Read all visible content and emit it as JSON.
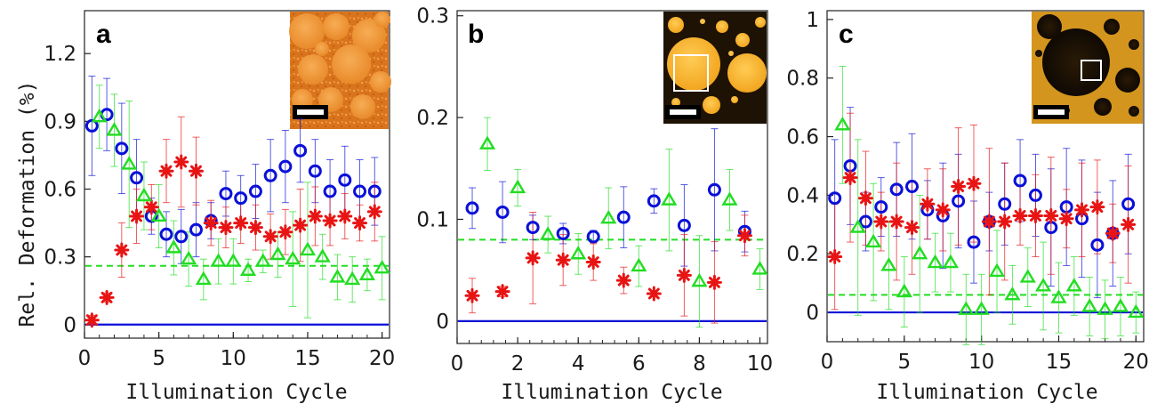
{
  "figure": {
    "ylabel": "Rel. Deformation (%)",
    "colors": {
      "blue": "#0a10d8",
      "red": "#e81414",
      "green": "#22dd22",
      "axis": "#222222"
    }
  },
  "chart_data": [
    {
      "type": "scatter",
      "panel_label": "a",
      "title": "",
      "xlabel": "Illumination Cycle",
      "ylabel": "Rel. Deformation (%)",
      "xlim": [
        0,
        20.5
      ],
      "ylim": [
        -0.06,
        1.39
      ],
      "xticks": [
        0,
        5,
        10,
        15,
        20
      ],
      "xtick_labels": [
        "0",
        "5",
        "10",
        "15",
        "20"
      ],
      "yticks": [
        0,
        0.3,
        0.6,
        0.9,
        1.2
      ],
      "ytick_labels": [
        "0",
        "0.3",
        "0.6",
        "0.9",
        "1.2"
      ],
      "grid": false,
      "reference_lines": [
        {
          "y": 0,
          "style": "solid",
          "color": "blue"
        },
        {
          "y": 0.26,
          "style": "dashed",
          "color": "green"
        }
      ],
      "series": [
        {
          "marker": "circle",
          "color": "blue",
          "x": [
            0.5,
            1.5,
            2.5,
            3.5,
            4.5,
            5.5,
            6.5,
            7.5,
            8.5,
            9.5,
            10.5,
            11.5,
            12.5,
            13.5,
            14.5,
            15.5,
            16.5,
            17.5,
            18.5,
            19.5
          ],
          "y": [
            0.88,
            0.93,
            0.78,
            0.65,
            0.48,
            0.4,
            0.39,
            0.42,
            0.46,
            0.58,
            0.56,
            0.59,
            0.66,
            0.7,
            0.77,
            0.68,
            0.59,
            0.64,
            0.59,
            0.59
          ],
          "err": [
            0.22,
            0.16,
            0.2,
            0.17,
            0.08,
            0.1,
            0.12,
            0.12,
            0.08,
            0.1,
            0.1,
            0.12,
            0.16,
            0.16,
            0.14,
            0.14,
            0.14,
            0.15,
            0.14,
            0.15
          ]
        },
        {
          "marker": "asterisk",
          "color": "red",
          "x": [
            0.5,
            1.5,
            2.5,
            3.5,
            4.5,
            5.5,
            6.5,
            7.5,
            8.5,
            9.5,
            10.5,
            11.5,
            12.5,
            13.5,
            14.5,
            15.5,
            16.5,
            17.5,
            18.5,
            19.5
          ],
          "y": [
            0.02,
            0.12,
            0.33,
            0.48,
            0.52,
            0.68,
            0.72,
            0.68,
            0.45,
            0.43,
            0.45,
            0.43,
            0.39,
            0.41,
            0.44,
            0.48,
            0.46,
            0.48,
            0.45,
            0.5
          ],
          "err": [
            0.02,
            0.02,
            0.12,
            0.12,
            0.1,
            0.14,
            0.2,
            0.15,
            0.1,
            0.09,
            0.09,
            0.1,
            0.1,
            0.1,
            0.16,
            0.13,
            0.11,
            0.1,
            0.08,
            0.13
          ]
        },
        {
          "marker": "triangle",
          "color": "green",
          "x": [
            1,
            2,
            3,
            4,
            5,
            6,
            7,
            8,
            9,
            10,
            11,
            12,
            13,
            14,
            15,
            16,
            17,
            18,
            19,
            20
          ],
          "y": [
            0.92,
            0.86,
            0.71,
            0.57,
            0.48,
            0.34,
            0.29,
            0.2,
            0.28,
            0.28,
            0.24,
            0.28,
            0.31,
            0.29,
            0.33,
            0.3,
            0.21,
            0.2,
            0.22,
            0.25
          ],
          "err": [
            0.14,
            0.16,
            0.28,
            0.15,
            0.14,
            0.12,
            0.12,
            0.09,
            0.1,
            0.1,
            0.05,
            0.05,
            0.1,
            0.21,
            0.3,
            0.1,
            0.1,
            0.1,
            0.07,
            0.14
          ]
        }
      ]
    },
    {
      "type": "scatter",
      "panel_label": "b",
      "title": "",
      "xlabel": "Illumination Cycle",
      "ylabel": "",
      "xlim": [
        0,
        10.25
      ],
      "ylim": [
        -0.022,
        0.305
      ],
      "xticks": [
        0,
        2,
        4,
        6,
        8,
        10
      ],
      "xtick_labels": [
        "0",
        "2",
        "4",
        "6",
        "8",
        "10"
      ],
      "yticks": [
        0,
        0.1,
        0.2,
        0.3
      ],
      "ytick_labels": [
        "0",
        "0.1",
        "0.2",
        "0.3"
      ],
      "grid": false,
      "reference_lines": [
        {
          "y": 0,
          "style": "solid",
          "color": "blue"
        },
        {
          "y": 0.08,
          "style": "dashed",
          "color": "green"
        }
      ],
      "series": [
        {
          "marker": "circle",
          "color": "blue",
          "x": [
            0.5,
            1.5,
            2.5,
            3.5,
            4.5,
            5.5,
            6.5,
            7.5,
            8.5,
            9.5
          ],
          "y": [
            0.111,
            0.107,
            0.092,
            0.086,
            0.083,
            0.102,
            0.118,
            0.094,
            0.129,
            0.088
          ],
          "err": [
            0.02,
            0.03,
            0.012,
            0.01,
            0.006,
            0.03,
            0.012,
            0.04,
            0.06,
            0.02
          ]
        },
        {
          "marker": "asterisk",
          "color": "red",
          "x": [
            0.5,
            1.5,
            2.5,
            3.5,
            4.5,
            5.5,
            6.5,
            7.5,
            8.5,
            9.5
          ],
          "y": [
            0.025,
            0.029,
            0.062,
            0.06,
            0.058,
            0.04,
            0.027,
            0.045,
            0.038,
            0.084
          ],
          "err": [
            0.017,
            0.005,
            0.045,
            0.025,
            0.018,
            0.013,
            0.003,
            0.04,
            0.04,
            0.02
          ]
        },
        {
          "marker": "triangle",
          "color": "green",
          "x": [
            1,
            2,
            3,
            4,
            5,
            6,
            7,
            8,
            9,
            10
          ],
          "y": [
            0.174,
            0.131,
            0.085,
            0.066,
            0.101,
            0.054,
            0.119,
            0.039,
            0.119,
            0.051
          ],
          "err": [
            0.026,
            0.018,
            0.018,
            0.02,
            0.03,
            0.02,
            0.05,
            0.045,
            0.03,
            0.02
          ]
        }
      ]
    },
    {
      "type": "scatter",
      "panel_label": "c",
      "title": "",
      "xlabel": "Illumination Cycle",
      "ylabel": "",
      "xlim": [
        0,
        20.5
      ],
      "ylim": [
        -0.1,
        1.03
      ],
      "xticks": [
        0,
        5,
        10,
        15,
        20
      ],
      "xtick_labels": [
        "0",
        "5",
        "10",
        "15",
        "20"
      ],
      "yticks": [
        0,
        0.2,
        0.4,
        0.6,
        0.8,
        1
      ],
      "ytick_labels": [
        "0",
        "0.2",
        "0.4",
        "0.6",
        "0.8",
        "1"
      ],
      "grid": false,
      "reference_lines": [
        {
          "y": 0,
          "style": "solid",
          "color": "blue"
        },
        {
          "y": 0.06,
          "style": "dashed",
          "color": "green"
        }
      ],
      "series": [
        {
          "marker": "circle",
          "color": "blue",
          "x": [
            0.5,
            1.5,
            2.5,
            3.5,
            4.5,
            5.5,
            6.5,
            7.5,
            8.5,
            9.5,
            10.5,
            11.5,
            12.5,
            13.5,
            14.5,
            15.5,
            16.5,
            17.5,
            18.5,
            19.5
          ],
          "y": [
            0.39,
            0.5,
            0.31,
            0.36,
            0.42,
            0.43,
            0.35,
            0.33,
            0.38,
            0.24,
            0.31,
            0.37,
            0.45,
            0.4,
            0.29,
            0.36,
            0.32,
            0.23,
            0.27,
            0.37
          ],
          "err": [
            0.2,
            0.2,
            0.1,
            0.1,
            0.16,
            0.18,
            0.1,
            0.18,
            0.16,
            0.14,
            0.1,
            0.14,
            0.14,
            0.14,
            0.2,
            0.2,
            0.2,
            0.18,
            0.18,
            0.17
          ]
        },
        {
          "marker": "asterisk",
          "color": "red",
          "x": [
            0.5,
            1.5,
            2.5,
            3.5,
            4.5,
            5.5,
            6.5,
            7.5,
            8.5,
            9.5,
            10.5,
            11.5,
            12.5,
            13.5,
            14.5,
            15.5,
            16.5,
            17.5,
            18.5,
            19.5
          ],
          "y": [
            0.19,
            0.46,
            0.39,
            0.31,
            0.31,
            0.29,
            0.37,
            0.35,
            0.43,
            0.44,
            0.31,
            0.31,
            0.33,
            0.33,
            0.33,
            0.32,
            0.35,
            0.36,
            0.27,
            0.3
          ],
          "err": [
            0.18,
            0.22,
            0.16,
            0.1,
            0.2,
            0.16,
            0.12,
            0.14,
            0.2,
            0.2,
            0.25,
            0.2,
            0.1,
            0.14,
            0.2,
            0.1,
            0.16,
            0.16,
            0.1,
            0.2
          ]
        },
        {
          "marker": "triangle",
          "color": "green",
          "x": [
            1,
            2,
            3,
            4,
            5,
            6,
            7,
            8,
            9,
            10,
            11,
            12,
            13,
            14,
            15,
            16,
            17,
            18,
            19,
            20
          ],
          "y": [
            0.64,
            0.29,
            0.24,
            0.16,
            0.07,
            0.2,
            0.17,
            0.17,
            0.01,
            0.01,
            0.14,
            0.06,
            0.12,
            0.09,
            0.05,
            0.09,
            0.02,
            0.01,
            0.02,
            0.0
          ],
          "err": [
            0.2,
            0.3,
            0.2,
            0.15,
            0.12,
            0.2,
            0.1,
            0.1,
            0.12,
            0.12,
            0.14,
            0.1,
            0.1,
            0.15,
            0.12,
            0.1,
            0.1,
            0.1,
            0.1,
            0.07
          ]
        }
      ]
    }
  ]
}
